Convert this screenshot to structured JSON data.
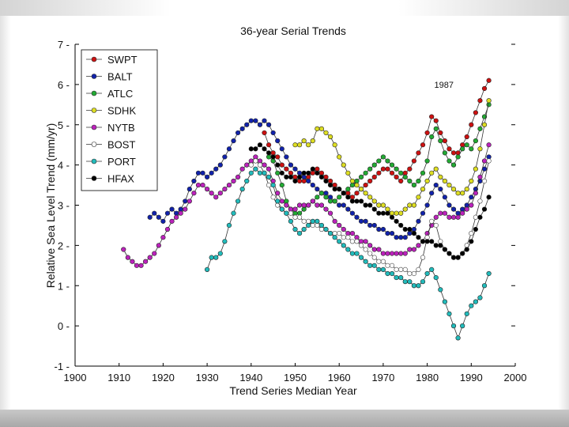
{
  "chart_data": {
    "type": "line",
    "title": "36-year Serial Trends",
    "xlabel": "Trend Series Median Year",
    "ylabel": "Relative Sea Level Trend (mm/yr)",
    "xlim": [
      1900,
      2000
    ],
    "ylim": [
      -1,
      7
    ],
    "xticks": [
      "1900",
      "1910",
      "1920",
      "1930",
      "1940",
      "1950",
      "1960",
      "1970",
      "1980",
      "1990",
      "2000"
    ],
    "yticks": [
      "-1",
      "0",
      "1",
      "2",
      "3",
      "4",
      "5",
      "6",
      "7"
    ],
    "legend_position": "top-left",
    "annotations": [
      {
        "text": "1987",
        "x": 1983.8,
        "y": 6.0
      }
    ],
    "series": [
      {
        "name": "SWPT",
        "color": "#cc1111",
        "filled": true,
        "x": [
          1943,
          1944,
          1945,
          1946,
          1947,
          1948,
          1949,
          1950,
          1951,
          1952,
          1953,
          1954,
          1955,
          1956,
          1957,
          1958,
          1959,
          1960,
          1961,
          1962,
          1963,
          1964,
          1965,
          1966,
          1967,
          1968,
          1969,
          1970,
          1971,
          1972,
          1973,
          1974,
          1975,
          1976,
          1977,
          1978,
          1979,
          1980,
          1981,
          1982,
          1983,
          1984,
          1985,
          1986,
          1987,
          1988,
          1989,
          1990,
          1991,
          1992,
          1993,
          1994
        ],
        "y": [
          4.8,
          4.5,
          4.3,
          4.2,
          4.0,
          3.9,
          3.8,
          3.7,
          3.6,
          3.6,
          3.7,
          3.8,
          3.9,
          3.8,
          3.7,
          3.6,
          3.5,
          3.4,
          3.3,
          3.3,
          3.2,
          3.3,
          3.4,
          3.5,
          3.6,
          3.7,
          3.8,
          3.9,
          3.9,
          3.8,
          3.7,
          3.6,
          3.8,
          3.9,
          4.1,
          4.3,
          4.5,
          4.8,
          5.2,
          5.1,
          4.8,
          4.6,
          4.4,
          4.3,
          4.3,
          4.5,
          4.7,
          5.0,
          5.3,
          5.6,
          5.9,
          6.1
        ]
      },
      {
        "name": "BALT",
        "color": "#1122aa",
        "filled": true,
        "x": [
          1917,
          1918,
          1919,
          1920,
          1921,
          1922,
          1923,
          1924,
          1925,
          1926,
          1927,
          1928,
          1929,
          1930,
          1931,
          1932,
          1933,
          1934,
          1935,
          1936,
          1937,
          1938,
          1939,
          1940,
          1941,
          1942,
          1943,
          1944,
          1945,
          1946,
          1947,
          1948,
          1949,
          1950,
          1951,
          1952,
          1953,
          1954,
          1955,
          1956,
          1957,
          1958,
          1959,
          1960,
          1961,
          1962,
          1963,
          1964,
          1965,
          1966,
          1967,
          1968,
          1969,
          1970,
          1971,
          1972,
          1973,
          1974,
          1975,
          1976,
          1977,
          1978,
          1979,
          1980,
          1981,
          1982,
          1983,
          1984,
          1985,
          1986,
          1987,
          1988,
          1989,
          1990,
          1991,
          1992,
          1993,
          1994
        ],
        "y": [
          2.7,
          2.8,
          2.7,
          2.6,
          2.8,
          2.9,
          2.8,
          2.9,
          3.1,
          3.4,
          3.6,
          3.8,
          3.8,
          3.7,
          3.8,
          3.9,
          4.0,
          4.2,
          4.4,
          4.6,
          4.8,
          4.9,
          5.0,
          5.1,
          5.1,
          5.0,
          5.1,
          5.0,
          4.8,
          4.6,
          4.4,
          4.2,
          4.0,
          3.9,
          3.8,
          3.7,
          3.6,
          3.5,
          3.4,
          3.3,
          3.3,
          3.2,
          3.1,
          3.0,
          3.0,
          2.9,
          2.8,
          2.7,
          2.6,
          2.6,
          2.5,
          2.5,
          2.4,
          2.4,
          2.3,
          2.3,
          2.2,
          2.2,
          2.2,
          2.3,
          2.4,
          2.6,
          2.8,
          3.0,
          3.3,
          3.5,
          3.4,
          3.2,
          3.0,
          2.9,
          2.8,
          2.9,
          3.0,
          3.2,
          3.4,
          3.6,
          3.9,
          4.2
        ]
      },
      {
        "name": "ATLC",
        "color": "#22aa33",
        "filled": true,
        "x": [
          1944,
          1945,
          1946,
          1947,
          1948,
          1949,
          1950,
          1951,
          1952,
          1953,
          1954,
          1955,
          1956,
          1957,
          1958,
          1959,
          1960,
          1961,
          1962,
          1963,
          1964,
          1965,
          1966,
          1967,
          1968,
          1969,
          1970,
          1971,
          1972,
          1973,
          1974,
          1975,
          1976,
          1977,
          1978,
          1979,
          1980,
          1981,
          1982,
          1983,
          1984,
          1985,
          1986,
          1987,
          1988,
          1989,
          1990,
          1991,
          1992,
          1993,
          1994
        ],
        "y": [
          4.2,
          4.1,
          3.8,
          3.5,
          3.1,
          2.9,
          2.8,
          2.8,
          2.9,
          3.0,
          3.1,
          3.2,
          3.3,
          3.2,
          3.1,
          3.1,
          3.2,
          3.3,
          3.4,
          3.5,
          3.6,
          3.7,
          3.8,
          3.9,
          4.0,
          4.1,
          4.2,
          4.1,
          4.0,
          3.9,
          3.8,
          3.7,
          3.6,
          3.5,
          3.6,
          3.8,
          4.1,
          4.7,
          4.9,
          4.6,
          4.3,
          4.1,
          4.0,
          4.2,
          4.4,
          4.5,
          4.4,
          4.6,
          4.9,
          5.2,
          5.5
        ]
      },
      {
        "name": "SDHK",
        "color": "#dddd22",
        "filled": true,
        "x": [
          1950,
          1951,
          1952,
          1953,
          1954,
          1955,
          1956,
          1957,
          1958,
          1959,
          1960,
          1961,
          1962,
          1963,
          1964,
          1965,
          1966,
          1967,
          1968,
          1969,
          1970,
          1971,
          1972,
          1973,
          1974,
          1975,
          1976,
          1977,
          1978,
          1979,
          1980,
          1981,
          1982,
          1983,
          1984,
          1985,
          1986,
          1987,
          1988,
          1989,
          1990,
          1991,
          1992,
          1993,
          1994
        ],
        "y": [
          4.5,
          4.5,
          4.6,
          4.5,
          4.6,
          4.9,
          4.9,
          4.8,
          4.7,
          4.5,
          4.2,
          4.0,
          3.8,
          3.6,
          3.5,
          3.4,
          3.3,
          3.2,
          3.1,
          3.0,
          3.0,
          2.9,
          2.8,
          2.8,
          2.8,
          2.9,
          3.0,
          3.0,
          3.2,
          3.4,
          3.6,
          3.8,
          3.9,
          3.7,
          3.6,
          3.5,
          3.4,
          3.3,
          3.3,
          3.4,
          3.6,
          3.9,
          4.4,
          5.0,
          5.6
        ]
      },
      {
        "name": "NYTB",
        "color": "#bb22bb",
        "filled": true,
        "x": [
          1911,
          1912,
          1913,
          1914,
          1915,
          1916,
          1917,
          1918,
          1919,
          1920,
          1921,
          1922,
          1923,
          1924,
          1925,
          1926,
          1927,
          1928,
          1929,
          1930,
          1931,
          1932,
          1933,
          1934,
          1935,
          1936,
          1937,
          1938,
          1939,
          1940,
          1941,
          1942,
          1943,
          1944,
          1945,
          1946,
          1947,
          1948,
          1949,
          1950,
          1951,
          1952,
          1953,
          1954,
          1955,
          1956,
          1957,
          1958,
          1959,
          1960,
          1961,
          1962,
          1963,
          1964,
          1965,
          1966,
          1967,
          1968,
          1969,
          1970,
          1971,
          1972,
          1973,
          1974,
          1975,
          1976,
          1977,
          1978,
          1979,
          1980,
          1981,
          1982,
          1983,
          1984,
          1985,
          1986,
          1987,
          1988,
          1989,
          1990,
          1991,
          1992,
          1993,
          1994
        ],
        "y": [
          1.9,
          1.7,
          1.6,
          1.5,
          1.5,
          1.6,
          1.7,
          1.8,
          2.0,
          2.2,
          2.4,
          2.6,
          2.7,
          2.8,
          2.9,
          3.1,
          3.3,
          3.5,
          3.5,
          3.4,
          3.3,
          3.2,
          3.3,
          3.4,
          3.5,
          3.6,
          3.7,
          3.9,
          4.0,
          4.1,
          4.2,
          4.1,
          4.0,
          3.9,
          3.6,
          3.3,
          3.1,
          3.0,
          2.9,
          2.9,
          3.0,
          3.0,
          3.0,
          3.1,
          3.0,
          3.0,
          2.9,
          2.8,
          2.6,
          2.5,
          2.4,
          2.3,
          2.3,
          2.2,
          2.1,
          2.1,
          2.0,
          1.9,
          1.9,
          1.8,
          1.8,
          1.8,
          1.8,
          1.8,
          1.8,
          1.9,
          1.9,
          2.0,
          2.1,
          2.3,
          2.5,
          2.7,
          2.8,
          2.8,
          2.7,
          2.7,
          2.7,
          2.8,
          2.9,
          3.0,
          3.3,
          3.7,
          4.1,
          4.5
        ]
      },
      {
        "name": "BOST",
        "color": "#333333",
        "filled": false,
        "x": [
          1940,
          1941,
          1942,
          1943,
          1944,
          1945,
          1946,
          1947,
          1948,
          1949,
          1950,
          1951,
          1952,
          1953,
          1954,
          1955,
          1956,
          1957,
          1958,
          1959,
          1960,
          1961,
          1962,
          1963,
          1964,
          1965,
          1966,
          1967,
          1968,
          1969,
          1970,
          1971,
          1972,
          1973,
          1974,
          1975,
          1976,
          1977,
          1978,
          1979,
          1980,
          1981,
          1982,
          1983,
          1984,
          1985,
          1986,
          1987,
          1988,
          1989,
          1990,
          1991,
          1992,
          1993,
          1994
        ],
        "y": [
          4.0,
          4.1,
          4.0,
          3.8,
          3.5,
          3.2,
          3.0,
          2.9,
          2.8,
          2.8,
          2.7,
          2.7,
          2.6,
          2.6,
          2.5,
          2.5,
          2.4,
          2.4,
          2.3,
          2.3,
          2.3,
          2.2,
          2.2,
          2.1,
          2.1,
          2.0,
          1.9,
          1.8,
          1.7,
          1.6,
          1.6,
          1.5,
          1.5,
          1.4,
          1.4,
          1.4,
          1.3,
          1.3,
          1.4,
          1.7,
          2.2,
          2.6,
          2.5,
          2.1,
          1.9,
          1.8,
          1.7,
          1.7,
          1.8,
          2.0,
          2.3,
          2.7,
          3.1,
          3.6,
          4.1
        ]
      },
      {
        "name": "PORT",
        "color": "#22bbbb",
        "filled": true,
        "x": [
          1930,
          1931,
          1932,
          1933,
          1934,
          1935,
          1936,
          1937,
          1938,
          1939,
          1940,
          1941,
          1942,
          1943,
          1944,
          1945,
          1946,
          1947,
          1948,
          1949,
          1950,
          1951,
          1952,
          1953,
          1954,
          1955,
          1956,
          1957,
          1958,
          1959,
          1960,
          1961,
          1962,
          1963,
          1964,
          1965,
          1966,
          1967,
          1968,
          1969,
          1970,
          1971,
          1972,
          1973,
          1974,
          1975,
          1976,
          1977,
          1978,
          1979,
          1980,
          1981,
          1982,
          1983,
          1984,
          1985,
          1986,
          1987,
          1988,
          1989,
          1990,
          1991,
          1992,
          1993,
          1994
        ],
        "y": [
          1.4,
          1.7,
          1.7,
          1.8,
          2.1,
          2.5,
          2.8,
          3.1,
          3.4,
          3.6,
          3.8,
          3.9,
          3.8,
          3.8,
          3.7,
          3.5,
          3.1,
          2.9,
          2.8,
          2.6,
          2.4,
          2.3,
          2.4,
          2.5,
          2.6,
          2.6,
          2.5,
          2.4,
          2.3,
          2.2,
          2.1,
          2.0,
          1.9,
          1.8,
          1.8,
          1.7,
          1.6,
          1.5,
          1.5,
          1.4,
          1.4,
          1.3,
          1.3,
          1.2,
          1.2,
          1.1,
          1.1,
          1.0,
          1.0,
          1.1,
          1.3,
          1.4,
          1.2,
          0.9,
          0.6,
          0.3,
          0.0,
          -0.3,
          0.0,
          0.3,
          0.5,
          0.6,
          0.7,
          1.0,
          1.3
        ]
      },
      {
        "name": "HFAX",
        "color": "#000000",
        "filled": true,
        "x": [
          1940,
          1941,
          1942,
          1943,
          1944,
          1945,
          1946,
          1947,
          1948,
          1949,
          1950,
          1951,
          1952,
          1953,
          1954,
          1955,
          1956,
          1957,
          1958,
          1959,
          1960,
          1961,
          1962,
          1963,
          1964,
          1965,
          1966,
          1967,
          1968,
          1969,
          1970,
          1971,
          1972,
          1973,
          1974,
          1975,
          1976,
          1977,
          1978,
          1979,
          1980,
          1981,
          1982,
          1983,
          1984,
          1985,
          1986,
          1987,
          1988,
          1989,
          1990,
          1991,
          1992,
          1993,
          1994
        ],
        "y": [
          4.4,
          4.4,
          4.5,
          4.4,
          4.3,
          4.2,
          4.0,
          3.8,
          3.7,
          3.7,
          3.6,
          3.7,
          3.8,
          3.8,
          3.9,
          3.8,
          3.7,
          3.6,
          3.5,
          3.4,
          3.4,
          3.3,
          3.2,
          3.1,
          3.1,
          3.1,
          3.0,
          3.0,
          2.9,
          2.8,
          2.8,
          2.8,
          2.7,
          2.6,
          2.5,
          2.4,
          2.4,
          2.3,
          2.2,
          2.1,
          2.1,
          2.1,
          2.0,
          2.0,
          1.9,
          1.8,
          1.7,
          1.7,
          1.8,
          1.9,
          2.1,
          2.4,
          2.7,
          2.9,
          3.2
        ]
      }
    ]
  }
}
